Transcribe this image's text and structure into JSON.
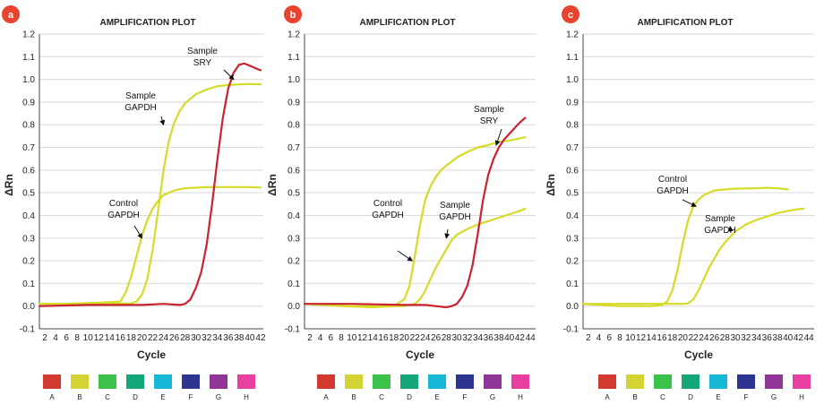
{
  "colors": {
    "badge": "#E8432E",
    "grid": "#d9d9d9",
    "axis": "#444444",
    "gapdh": "#D6DB27",
    "sry": "#C8232E",
    "arrow": "#111111"
  },
  "legend": {
    "items": [
      {
        "label": "A",
        "color": "#D33A2F"
      },
      {
        "label": "B",
        "color": "#D3D433"
      },
      {
        "label": "C",
        "color": "#3CC24A"
      },
      {
        "label": "D",
        "color": "#14A77A"
      },
      {
        "label": "E",
        "color": "#17B8D6"
      },
      {
        "label": "F",
        "color": "#2D3591"
      },
      {
        "label": "G",
        "color": "#8F3595"
      },
      {
        "label": "H",
        "color": "#E83FA0"
      }
    ]
  },
  "chart_data": [
    {
      "type": "line",
      "panel_label": "a",
      "title": "AMPLIFICATION PLOT",
      "xlabel": "Cycle",
      "ylabel": "ΔRn",
      "xlim": [
        1,
        42.5
      ],
      "ylim": [
        -0.1,
        1.2
      ],
      "xticks": [
        2,
        4,
        6,
        8,
        10,
        12,
        14,
        16,
        18,
        20,
        22,
        24,
        26,
        28,
        30,
        32,
        34,
        36,
        38,
        40,
        42
      ],
      "yticks": [
        "-0.1",
        "0.0",
        "0.1",
        "0.2",
        "0.3",
        "0.4",
        "0.5",
        "0.6",
        "0.7",
        "0.8",
        "0.9",
        "1.0",
        "1.1",
        "1.2"
      ],
      "grid": "horizontal",
      "series": [
        {
          "color": "#D6DB27",
          "x": [
            1,
            6,
            12,
            16,
            17,
            18,
            19,
            20,
            21,
            22,
            23,
            24,
            26,
            28,
            32,
            36,
            40,
            42
          ],
          "y": [
            0.01,
            0.01,
            0.015,
            0.02,
            0.06,
            0.13,
            0.22,
            0.31,
            0.38,
            0.43,
            0.465,
            0.49,
            0.51,
            0.52,
            0.525,
            0.525,
            0.525,
            0.523
          ]
        },
        {
          "color": "#D6DB27",
          "x": [
            1,
            10,
            18,
            19,
            20,
            21,
            22,
            23,
            24,
            25,
            26,
            27,
            28,
            30,
            32,
            34,
            36,
            38,
            40,
            42
          ],
          "y": [
            0.01,
            0.01,
            0.012,
            0.02,
            0.05,
            0.12,
            0.25,
            0.42,
            0.6,
            0.73,
            0.81,
            0.86,
            0.895,
            0.935,
            0.955,
            0.97,
            0.975,
            0.978,
            0.98,
            0.978
          ]
        },
        {
          "color": "#C8232E",
          "x": [
            1,
            10,
            20,
            24,
            27,
            28,
            29,
            30,
            31,
            32,
            33,
            34,
            35,
            36,
            37,
            38,
            39,
            40,
            41,
            42
          ],
          "y": [
            0.0,
            0.005,
            0.005,
            0.01,
            0.005,
            0.01,
            0.03,
            0.08,
            0.15,
            0.27,
            0.45,
            0.65,
            0.83,
            0.96,
            1.03,
            1.065,
            1.07,
            1.06,
            1.05,
            1.04
          ]
        }
      ],
      "annotations": [
        {
          "lines": [
            "Sample",
            "SRY"
          ],
          "arrow_to": [
            37,
            1.0
          ]
        },
        {
          "lines": [
            "Sample",
            "GAPDH"
          ],
          "arrow_to": [
            24,
            0.8
          ]
        },
        {
          "lines": [
            "Control",
            "GAPDH"
          ],
          "arrow_to": [
            20,
            0.3
          ]
        }
      ]
    },
    {
      "type": "line",
      "panel_label": "b",
      "title": "AMPLIFICATION PLOT",
      "xlabel": "Cycle",
      "ylabel": "ΔRn",
      "xlim": [
        1,
        45
      ],
      "ylim": [
        -0.1,
        1.2
      ],
      "xticks": [
        2,
        4,
        6,
        8,
        10,
        12,
        14,
        16,
        18,
        20,
        22,
        24,
        26,
        28,
        30,
        32,
        34,
        36,
        38,
        40,
        42,
        44
      ],
      "yticks": [
        "-0.1",
        "0.0",
        "0.1",
        "0.2",
        "0.3",
        "0.4",
        "0.5",
        "0.6",
        "0.7",
        "0.8",
        "0.9",
        "1.0",
        "1.1",
        "1.2"
      ],
      "grid": "horizontal",
      "series": [
        {
          "color": "#D6DB27",
          "x": [
            1,
            8,
            14,
            18,
            20,
            21,
            22,
            23,
            24,
            25,
            26,
            27,
            28,
            30,
            32,
            34,
            36,
            38,
            40,
            42,
            43
          ],
          "y": [
            0.01,
            0.0,
            -0.005,
            0.0,
            0.03,
            0.09,
            0.22,
            0.36,
            0.47,
            0.53,
            0.57,
            0.6,
            0.62,
            0.655,
            0.68,
            0.7,
            0.71,
            0.725,
            0.73,
            0.74,
            0.745
          ]
        },
        {
          "color": "#D6DB27",
          "x": [
            1,
            10,
            20,
            22,
            23,
            24,
            25,
            26,
            27,
            28,
            29,
            30,
            32,
            34,
            36,
            38,
            40,
            42,
            43
          ],
          "y": [
            0.01,
            0.0,
            0.0,
            0.01,
            0.03,
            0.07,
            0.12,
            0.17,
            0.21,
            0.25,
            0.29,
            0.315,
            0.34,
            0.36,
            0.375,
            0.39,
            0.405,
            0.42,
            0.43
          ]
        },
        {
          "color": "#C8232E",
          "x": [
            1,
            10,
            20,
            24,
            26,
            28,
            29,
            30,
            31,
            32,
            33,
            34,
            35,
            36,
            37,
            38,
            39,
            40,
            41,
            42,
            43
          ],
          "y": [
            0.01,
            0.01,
            0.005,
            0.005,
            0.0,
            -0.005,
            0.0,
            0.01,
            0.04,
            0.09,
            0.18,
            0.32,
            0.47,
            0.58,
            0.65,
            0.7,
            0.735,
            0.76,
            0.785,
            0.81,
            0.83
          ]
        }
      ],
      "annotations": [
        {
          "lines": [
            "Sample",
            "SRY"
          ],
          "arrow_to": [
            37.5,
            0.71
          ]
        },
        {
          "lines": [
            "Control",
            "GAPDH"
          ],
          "arrow_to": [
            21.5,
            0.2
          ]
        },
        {
          "lines": [
            "Sample",
            "GAPDH"
          ],
          "arrow_to": [
            28,
            0.3
          ]
        }
      ]
    },
    {
      "type": "line",
      "panel_label": "c",
      "title": "AMPLIFICATION PLOT",
      "xlabel": "Cycle",
      "ylabel": "ΔRn",
      "xlim": [
        1,
        45
      ],
      "ylim": [
        -0.1,
        1.2
      ],
      "xticks": [
        2,
        4,
        6,
        8,
        10,
        12,
        14,
        16,
        18,
        20,
        22,
        24,
        26,
        28,
        30,
        32,
        34,
        36,
        38,
        40,
        42,
        44
      ],
      "yticks": [
        "-0.1",
        "0.0",
        "0.1",
        "0.2",
        "0.3",
        "0.4",
        "0.5",
        "0.6",
        "0.7",
        "0.8",
        "0.9",
        "1.0",
        "1.1",
        "1.2"
      ],
      "grid": "horizontal",
      "series": [
        {
          "color": "#D6DB27",
          "x": [
            1,
            8,
            14,
            16,
            17,
            18,
            19,
            20,
            21,
            22,
            23,
            24,
            26,
            28,
            30,
            34,
            36,
            38,
            40
          ],
          "y": [
            0.01,
            0.0,
            0.0,
            0.005,
            0.02,
            0.07,
            0.16,
            0.28,
            0.38,
            0.44,
            0.47,
            0.49,
            0.51,
            0.515,
            0.518,
            0.52,
            0.522,
            0.52,
            0.515
          ]
        },
        {
          "color": "#D6DB27",
          "x": [
            1,
            10,
            20,
            21,
            22,
            23,
            24,
            25,
            26,
            27,
            28,
            30,
            32,
            34,
            36,
            38,
            40,
            42,
            43
          ],
          "y": [
            0.01,
            0.01,
            0.01,
            0.012,
            0.03,
            0.07,
            0.12,
            0.17,
            0.21,
            0.25,
            0.28,
            0.33,
            0.36,
            0.38,
            0.395,
            0.41,
            0.42,
            0.428,
            0.43
          ]
        }
      ],
      "annotations": [
        {
          "lines": [
            "Control",
            "GAPDH"
          ],
          "arrow_to": [
            22.5,
            0.44
          ]
        },
        {
          "lines": [
            "Sample",
            "GAPDH"
          ],
          "arrow_to": [
            29,
            0.35
          ]
        }
      ]
    }
  ]
}
